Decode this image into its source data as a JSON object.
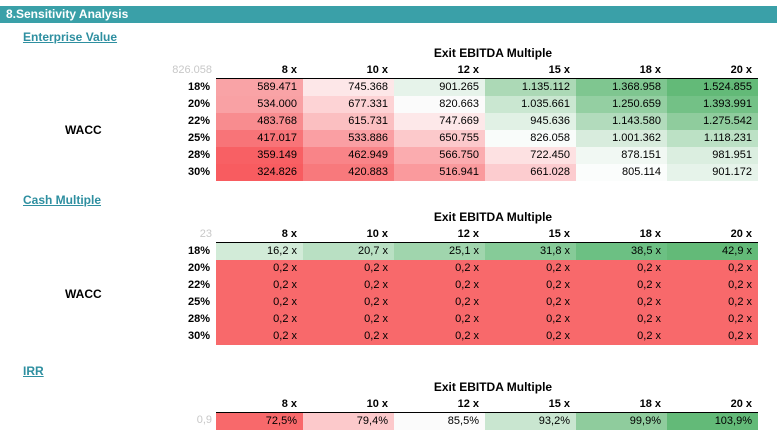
{
  "title": "8.Sensitivity Analysis",
  "tables": [
    {
      "name": "Enterprise Value",
      "corner": "826.058",
      "exit_title": "Exit EBITDA Multiple",
      "row_axis": "WACC",
      "cols": [
        "8 x",
        "10 x",
        "12 x",
        "15 x",
        "18 x",
        "20 x"
      ],
      "rows": [
        {
          "label": "18%",
          "values": [
            "589.471",
            "745.368",
            "901.265",
            "1.135.112",
            "1.368.958",
            "1.524.855"
          ],
          "colors": [
            "#f9a3a6",
            "#fde7e8",
            "#e6f3ea",
            "#acd9b6",
            "#7fc690",
            "#63ba78"
          ]
        },
        {
          "label": "20%",
          "values": [
            "534.000",
            "677.331",
            "820.663",
            "1.035.661",
            "1.250.659",
            "1.393.991"
          ],
          "colors": [
            "#f9a1a4",
            "#fdd3d5",
            "#fbfbfb",
            "#cae7d1",
            "#94cfa2",
            "#73c186"
          ]
        },
        {
          "label": "22%",
          "values": [
            "483.768",
            "615.731",
            "747.669",
            "945.636",
            "1.143.580",
            "1.275.542"
          ],
          "colors": [
            "#f88c8f",
            "#fbbfc1",
            "#fde8e9",
            "#e1f1e5",
            "#b2dbbc",
            "#8fcc9d"
          ]
        },
        {
          "label": "25%",
          "values": [
            "417.017",
            "533.886",
            "650.755",
            "826.058",
            "1.001.362",
            "1.118.231"
          ],
          "colors": [
            "#f87478",
            "#fa9fa3",
            "#fcc9cb",
            "#f9fcfa",
            "#d8ecdd",
            "#bce1c5"
          ]
        },
        {
          "label": "28%",
          "values": [
            "359.149",
            "462.949",
            "566.750",
            "722.450",
            "878.151",
            "981.951"
          ],
          "colors": [
            "#f86064",
            "#f98488",
            "#fbacaf",
            "#fde1e2",
            "#f1f8f3",
            "#dbeee0"
          ]
        },
        {
          "label": "30%",
          "values": [
            "324.826",
            "420.883",
            "516.941",
            "661.028",
            "805.114",
            "901.172"
          ],
          "colors": [
            "#f85c60",
            "#f8797c",
            "#fa9a9d",
            "#fccccf",
            "#fbfdfc",
            "#e6f3ea"
          ]
        }
      ]
    },
    {
      "name": "Cash Multiple",
      "corner": "23",
      "exit_title": "Exit EBITDA Multiple",
      "row_axis": "WACC",
      "cols": [
        "8 x",
        "10 x",
        "12 x",
        "15 x",
        "18 x",
        "20 x"
      ],
      "rows": [
        {
          "label": "18%",
          "values": [
            "16,2 x",
            "20,7 x",
            "25,1 x",
            "31,8 x",
            "38,5 x",
            "42,9 x"
          ],
          "colors": [
            "#d2ebd8",
            "#b9e0c3",
            "#a0d5ad",
            "#86cb98",
            "#6cc083",
            "#63ba78"
          ]
        },
        {
          "label": "20%",
          "values": [
            "0,2 x",
            "0,2 x",
            "0,2 x",
            "0,2 x",
            "0,2 x",
            "0,2 x"
          ],
          "colors": [
            "#f8696b",
            "#f8696b",
            "#f8696b",
            "#f8696b",
            "#f8696b",
            "#f8696b"
          ]
        },
        {
          "label": "22%",
          "values": [
            "0,2 x",
            "0,2 x",
            "0,2 x",
            "0,2 x",
            "0,2 x",
            "0,2 x"
          ],
          "colors": [
            "#f8696b",
            "#f8696b",
            "#f8696b",
            "#f8696b",
            "#f8696b",
            "#f8696b"
          ]
        },
        {
          "label": "25%",
          "values": [
            "0,2 x",
            "0,2 x",
            "0,2 x",
            "0,2 x",
            "0,2 x",
            "0,2 x"
          ],
          "colors": [
            "#f8696b",
            "#f8696b",
            "#f8696b",
            "#f8696b",
            "#f8696b",
            "#f8696b"
          ]
        },
        {
          "label": "28%",
          "values": [
            "0,2 x",
            "0,2 x",
            "0,2 x",
            "0,2 x",
            "0,2 x",
            "0,2 x"
          ],
          "colors": [
            "#f8696b",
            "#f8696b",
            "#f8696b",
            "#f8696b",
            "#f8696b",
            "#f8696b"
          ]
        },
        {
          "label": "30%",
          "values": [
            "0,2 x",
            "0,2 x",
            "0,2 x",
            "0,2 x",
            "0,2 x",
            "0,2 x"
          ],
          "colors": [
            "#f8696b",
            "#f8696b",
            "#f8696b",
            "#f8696b",
            "#f8696b",
            "#f8696b"
          ]
        }
      ]
    },
    {
      "name": "IRR",
      "corner": "0,9",
      "exit_title": "Exit EBITDA Multiple",
      "row_axis": "",
      "cols": [
        "8 x",
        "10 x",
        "12 x",
        "15 x",
        "18 x",
        "20 x"
      ],
      "rows": [
        {
          "label": "",
          "values": [
            "72,5%",
            "79,4%",
            "85,5%",
            "93,2%",
            "99,9%",
            "103,9%"
          ],
          "colors": [
            "#f8696b",
            "#fcc9cb",
            "#fbfbfb",
            "#c9e6d0",
            "#8fcc9d",
            "#63ba78"
          ]
        }
      ]
    }
  ]
}
